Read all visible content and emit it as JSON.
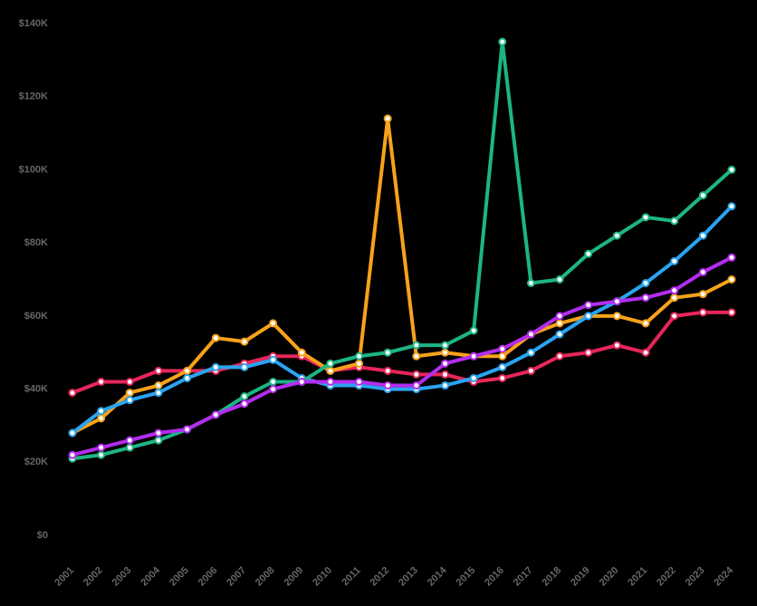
{
  "chart_data": {
    "type": "line",
    "x": [
      "2001",
      "2002",
      "2003",
      "2004",
      "2005",
      "2006",
      "2007",
      "2008",
      "2009",
      "2010",
      "2011",
      "2012",
      "2013",
      "2014",
      "2015",
      "2016",
      "2017",
      "2018",
      "2019",
      "2020",
      "2021",
      "2022",
      "2023",
      "2024"
    ],
    "ylim": [
      0,
      140000
    ],
    "yticks": [
      {
        "value": 0,
        "label": "$0"
      },
      {
        "value": 20000,
        "label": "$20K"
      },
      {
        "value": 40000,
        "label": "$40K"
      },
      {
        "value": 60000,
        "label": "$60K"
      },
      {
        "value": 80000,
        "label": "$80K"
      },
      {
        "value": 100000,
        "label": "$100K"
      },
      {
        "value": 120000,
        "label": "$120K"
      },
      {
        "value": 140000,
        "label": "$140K"
      }
    ],
    "background": "#000000",
    "series": [
      {
        "color": "#e8265a",
        "values": [
          39000,
          42000,
          42000,
          45000,
          45000,
          45000,
          47000,
          49000,
          49000,
          45000,
          46000,
          45000,
          44000,
          44000,
          42000,
          43000,
          45000,
          49000,
          50000,
          52000,
          50000,
          60000,
          61000,
          61000
        ]
      },
      {
        "color": "#f7a21b",
        "values": [
          28000,
          32000,
          39000,
          41000,
          45000,
          54000,
          53000,
          58000,
          50000,
          45000,
          47000,
          114000,
          49000,
          50000,
          49000,
          49000,
          55000,
          58000,
          60000,
          60000,
          58000,
          65000,
          66000,
          70000
        ]
      },
      {
        "color": "#2aa4f0",
        "values": [
          28000,
          34000,
          37000,
          39000,
          43000,
          46000,
          46000,
          48000,
          43000,
          41000,
          41000,
          40000,
          40000,
          41000,
          43000,
          46000,
          50000,
          55000,
          60000,
          64000,
          69000,
          75000,
          82000,
          90000
        ]
      },
      {
        "color": "#1db585",
        "values": [
          21000,
          22000,
          24000,
          26000,
          29000,
          33000,
          38000,
          42000,
          42000,
          47000,
          49000,
          50000,
          52000,
          52000,
          56000,
          135000,
          69000,
          70000,
          77000,
          82000,
          87000,
          86000,
          93000,
          100000
        ]
      },
      {
        "color": "#b42cf0",
        "values": [
          22000,
          24000,
          26000,
          28000,
          29000,
          33000,
          36000,
          40000,
          42000,
          42000,
          42000,
          41000,
          41000,
          47000,
          49000,
          51000,
          55000,
          60000,
          63000,
          64000,
          65000,
          67000,
          72000,
          76000
        ]
      }
    ]
  }
}
